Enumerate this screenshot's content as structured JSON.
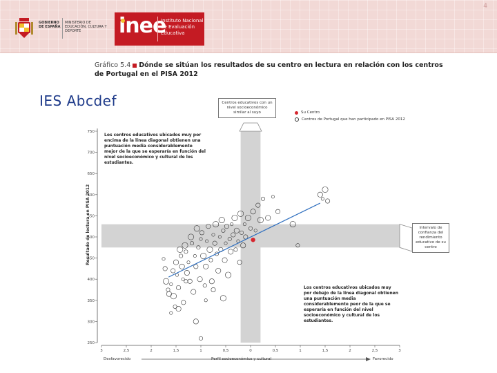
{
  "header": {
    "gov_text": "GOBIERNO DE ESPAÑA",
    "ministry_text": "MINISTERIO DE EDUCACIÓN, CULTURA Y DEPORTE",
    "logo_text": "inee",
    "institute_name": "Instituto Nacional de Evaluación Educativa",
    "corner_mark": "4",
    "brand_color": "#c41b23"
  },
  "figure_title": {
    "figure_number": "Gráfico 5.4",
    "text": "Dónde se sitúan los resultados de su centro en lectura en relación con los centros de Portugal en el PISA 2012"
  },
  "school_name": "IES Abcdef",
  "callouts": {
    "top": "Centros educativos con un nivel socioeconómico similar al suyo",
    "right": "Intervalo de confianza del rendimiento educativo de su centro"
  },
  "legend": {
    "your_school": "Su Centro",
    "portugal_schools": "Centros de Portugal que han participado en PISA 2012"
  },
  "notes": {
    "above": "Los centros educativos ubicados muy por encima de la línea diagonal obtienen una puntuación media considerablemente mejor de la que se esperaría en función del nivel socioeconómico y cultural de los estudiantes.",
    "below": "Los centros educativos ubicados muy por debajo de la línea diagonal obtienen una puntuación media considerablemente peor de la que se esperaría en función del nivel socioeconómico y cultural de los estudiantes."
  },
  "axis": {
    "ylabel": "Resultado de lectura en PISA 2012",
    "xlabel": "Perfil socioeconómico y cultural",
    "x_left_end": "Desfavorecido",
    "x_right_end": "Favorecido"
  },
  "chart_data": {
    "type": "scatter",
    "title": "Dónde se sitúan los resultados de su centro en lectura en relación con los centros de Portugal en el PISA 2012",
    "xlabel": "Perfil socioeconómico y cultural",
    "ylabel": "Resultado de lectura en PISA 2012",
    "xlim": [
      -3,
      3
    ],
    "ylim": [
      250,
      750
    ],
    "x_ticks": [
      -3,
      -2.5,
      -2,
      -1.5,
      -1,
      -0.5,
      0,
      0.5,
      1,
      1.5,
      2,
      2.5,
      3
    ],
    "x_tick_labels": [
      "3",
      "2,5",
      "2",
      "1,5",
      "1",
      "0,5",
      "0",
      "0,5",
      "1",
      "1,5",
      "2",
      "2,5",
      "3"
    ],
    "y_ticks": [
      250,
      300,
      350,
      400,
      450,
      500,
      550,
      600,
      650,
      700,
      750
    ],
    "y_tick_labels": [
      "250",
      "300",
      "350",
      "400",
      "450",
      "500",
      "550",
      "600",
      "650",
      "700",
      "750"
    ],
    "reference_band_x": [
      -0.2,
      0.2
    ],
    "reference_band_y": [
      475,
      530
    ],
    "regression_line": {
      "x": [
        -1.65,
        1.4
      ],
      "y": [
        405,
        580
      ]
    },
    "your_school": {
      "x": 0.05,
      "y": 493
    },
    "series": [
      {
        "name": "Centros de Portugal que han participado en PISA 2012",
        "points": [
          [
            -1.75,
            448
          ],
          [
            -1.72,
            425
          ],
          [
            -1.7,
            395
          ],
          [
            -1.66,
            375
          ],
          [
            -1.64,
            365
          ],
          [
            -1.6,
            388
          ],
          [
            -1.56,
            420
          ],
          [
            -1.55,
            360
          ],
          [
            -1.52,
            335
          ],
          [
            -1.5,
            440
          ],
          [
            -1.48,
            410
          ],
          [
            -1.45,
            380
          ],
          [
            -1.42,
            470
          ],
          [
            -1.4,
            455
          ],
          [
            -1.38,
            430
          ],
          [
            -1.36,
            400
          ],
          [
            -1.35,
            345
          ],
          [
            -1.32,
            480
          ],
          [
            -1.3,
            465
          ],
          [
            -1.28,
            415
          ],
          [
            -1.25,
            440
          ],
          [
            -1.22,
            395
          ],
          [
            -1.2,
            500
          ],
          [
            -1.18,
            485
          ],
          [
            -1.15,
            370
          ],
          [
            -1.12,
            455
          ],
          [
            -1.1,
            430
          ],
          [
            -1.08,
            520
          ],
          [
            -1.05,
            475
          ],
          [
            -1.02,
            400
          ],
          [
            -1.0,
            495
          ],
          [
            -0.98,
            510
          ],
          [
            -0.95,
            455
          ],
          [
            -0.92,
            385
          ],
          [
            -0.9,
            430
          ],
          [
            -0.88,
            490
          ],
          [
            -0.85,
            525
          ],
          [
            -0.82,
            470
          ],
          [
            -0.8,
            445
          ],
          [
            -0.78,
            395
          ],
          [
            -0.75,
            505
          ],
          [
            -0.72,
            485
          ],
          [
            -0.7,
            530
          ],
          [
            -0.68,
            460
          ],
          [
            -0.65,
            420
          ],
          [
            -0.62,
            500
          ],
          [
            -0.6,
            470
          ],
          [
            -0.58,
            540
          ],
          [
            -0.55,
            515
          ],
          [
            -0.52,
            445
          ],
          [
            -0.5,
            485
          ],
          [
            -0.48,
            525
          ],
          [
            -0.45,
            410
          ],
          [
            -0.42,
            495
          ],
          [
            -0.4,
            465
          ],
          [
            -0.38,
            530
          ],
          [
            -0.35,
            505
          ],
          [
            -0.32,
            545
          ],
          [
            -0.3,
            470
          ],
          [
            -0.28,
            515
          ],
          [
            -0.25,
            490
          ],
          [
            -0.22,
            440
          ],
          [
            -0.2,
            555
          ],
          [
            -0.18,
            510
          ],
          [
            -0.15,
            480
          ],
          [
            -0.12,
            530
          ],
          [
            -0.1,
            500
          ],
          [
            -0.05,
            545
          ],
          [
            0.0,
            520
          ],
          [
            0.05,
            560
          ],
          [
            0.1,
            515
          ],
          [
            0.15,
            575
          ],
          [
            0.2,
            540
          ],
          [
            0.25,
            590
          ],
          [
            0.35,
            545
          ],
          [
            0.45,
            595
          ],
          [
            0.55,
            560
          ],
          [
            0.85,
            530
          ],
          [
            0.95,
            480
          ],
          [
            1.4,
            600
          ],
          [
            1.45,
            590
          ],
          [
            1.55,
            585
          ],
          [
            1.5,
            612
          ],
          [
            -1.3,
            395
          ],
          [
            -1.45,
            330
          ],
          [
            -1.6,
            320
          ],
          [
            -0.75,
            375
          ],
          [
            -0.55,
            355
          ],
          [
            -1.0,
            260
          ],
          [
            -1.1,
            300
          ],
          [
            -0.9,
            350
          ]
        ]
      }
    ]
  }
}
